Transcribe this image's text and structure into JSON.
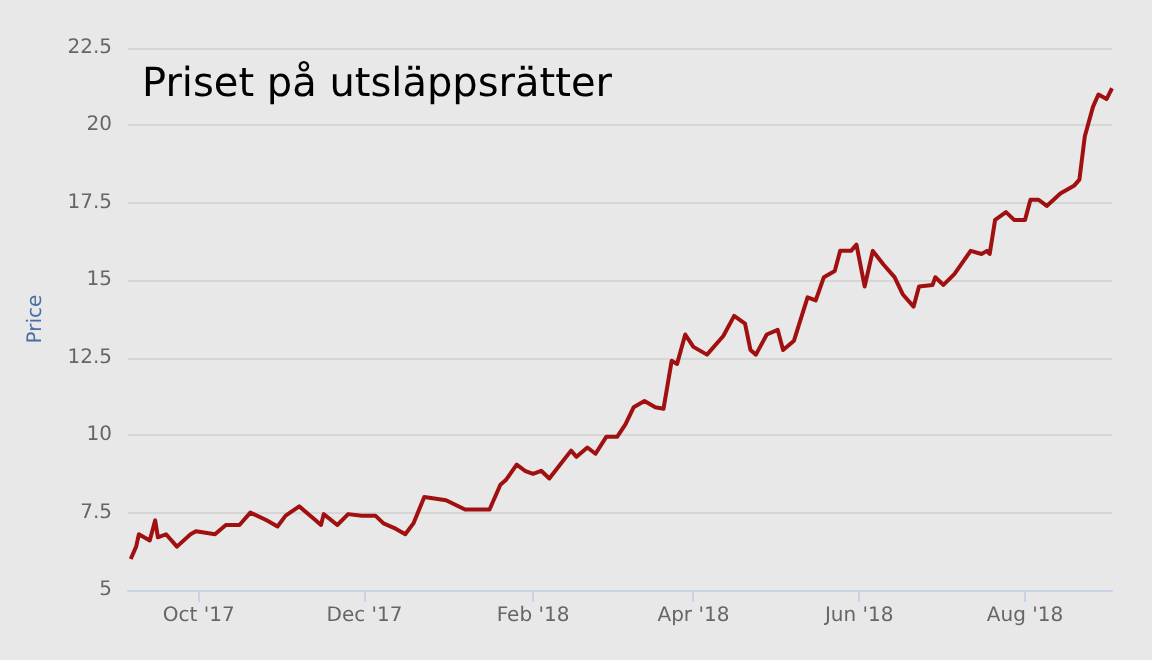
{
  "chart_data": {
    "type": "line",
    "title": "Priset på utsläppsrätter",
    "ylabel": "Price",
    "x": [
      "2017-09-06",
      "2017-09-08",
      "2017-09-09",
      "2017-09-13",
      "2017-09-15",
      "2017-09-16",
      "2017-09-19",
      "2017-09-23",
      "2017-09-28",
      "2017-09-30",
      "2017-10-07",
      "2017-10-11",
      "2017-10-16",
      "2017-10-20",
      "2017-10-26",
      "2017-10-30",
      "2017-11-02",
      "2017-11-07",
      "2017-11-13",
      "2017-11-15",
      "2017-11-16",
      "2017-11-21",
      "2017-11-25",
      "2017-11-30",
      "2017-12-05",
      "2017-12-08",
      "2017-12-12",
      "2017-12-16",
      "2017-12-19",
      "2017-12-23",
      "2017-12-31",
      "2018-01-07",
      "2018-01-16",
      "2018-01-20",
      "2018-01-22",
      "2018-01-26",
      "2018-01-29",
      "2018-02-01",
      "2018-02-04",
      "2018-02-07",
      "2018-02-11",
      "2018-02-15",
      "2018-02-17",
      "2018-02-21",
      "2018-02-24",
      "2018-02-28",
      "2018-03-04",
      "2018-03-07",
      "2018-03-10",
      "2018-03-14",
      "2018-03-18",
      "2018-03-21",
      "2018-03-24",
      "2018-03-26",
      "2018-03-29",
      "2018-04-01",
      "2018-04-06",
      "2018-04-12",
      "2018-04-16",
      "2018-04-20",
      "2018-04-22",
      "2018-04-24",
      "2018-04-28",
      "2018-05-02",
      "2018-05-04",
      "2018-05-08",
      "2018-05-13",
      "2018-05-16",
      "2018-05-19",
      "2018-05-23",
      "2018-05-25",
      "2018-05-29",
      "2018-05-31",
      "2018-06-03",
      "2018-06-06",
      "2018-06-10",
      "2018-06-14",
      "2018-06-17",
      "2018-06-21",
      "2018-06-23",
      "2018-06-28",
      "2018-06-29",
      "2018-07-02",
      "2018-07-06",
      "2018-07-12",
      "2018-07-16",
      "2018-07-18",
      "2018-07-19",
      "2018-07-21",
      "2018-07-25",
      "2018-07-28",
      "2018-08-01",
      "2018-08-03",
      "2018-08-06",
      "2018-08-09",
      "2018-08-14",
      "2018-08-19",
      "2018-08-21",
      "2018-08-23",
      "2018-08-26",
      "2018-08-28",
      "2018-08-31",
      "2018-09-02"
    ],
    "series": [
      {
        "color": "#a01010",
        "values": [
          6.0,
          6.4,
          6.8,
          6.6,
          7.25,
          6.7,
          6.8,
          6.4,
          6.8,
          6.9,
          6.8,
          7.1,
          7.1,
          7.5,
          7.25,
          7.05,
          7.4,
          7.7,
          7.25,
          7.1,
          7.45,
          7.1,
          7.45,
          7.4,
          7.4,
          7.15,
          7.0,
          6.8,
          7.15,
          8.0,
          7.9,
          7.6,
          7.6,
          8.4,
          8.55,
          9.05,
          8.85,
          8.75,
          8.85,
          8.6,
          9.05,
          9.5,
          9.3,
          9.6,
          9.4,
          9.95,
          9.95,
          10.35,
          10.9,
          11.1,
          10.9,
          10.85,
          12.4,
          12.3,
          13.25,
          12.85,
          12.6,
          13.2,
          13.85,
          13.6,
          12.75,
          12.6,
          13.25,
          13.4,
          12.75,
          13.05,
          14.45,
          14.35,
          15.1,
          15.3,
          15.95,
          15.95,
          16.15,
          14.8,
          15.95,
          15.5,
          15.1,
          14.55,
          14.15,
          14.8,
          14.85,
          15.1,
          14.85,
          15.2,
          15.95,
          15.85,
          15.95,
          15.85,
          16.95,
          17.2,
          16.95,
          16.95,
          17.6,
          17.6,
          17.4,
          17.8,
          18.05,
          18.25,
          19.65,
          20.6,
          21.0,
          20.85,
          21.2
        ]
      }
    ],
    "xlim": [
      "2017-09-05",
      "2018-09-02"
    ],
    "xticks": [
      {
        "value": "2017-10-01",
        "label": "Oct '17"
      },
      {
        "value": "2017-12-01",
        "label": "Dec '17"
      },
      {
        "value": "2018-02-01",
        "label": "Feb '18"
      },
      {
        "value": "2018-04-01",
        "label": "Apr '18"
      },
      {
        "value": "2018-06-01",
        "label": "Jun '18"
      },
      {
        "value": "2018-08-01",
        "label": "Aug '18"
      }
    ],
    "ylim": [
      5,
      22.5
    ],
    "yticks": [
      5,
      7.5,
      10,
      12.5,
      15,
      17.5,
      20,
      22.5
    ],
    "grid": "y",
    "marker": "none",
    "line_style": "solid"
  }
}
